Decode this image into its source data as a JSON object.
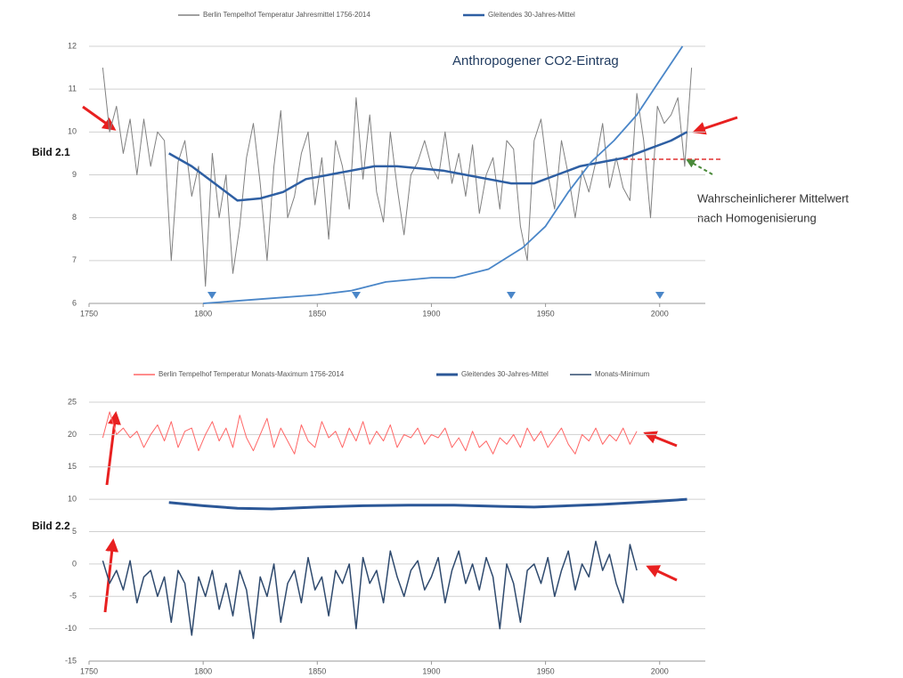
{
  "chart_data": [
    {
      "type": "line",
      "label": "Bild 2.1",
      "annotations": [
        "Anthropogener CO2-Eintrag",
        "Wahrscheinlicherer Mittelwert",
        "nach Homogenisierung"
      ],
      "xlim": [
        1750,
        2020
      ],
      "xticks": [
        1750,
        1800,
        1850,
        1900,
        1950,
        2000
      ],
      "ylim": [
        6,
        12
      ],
      "yticks": [
        6,
        7,
        8,
        9,
        10,
        11,
        12
      ],
      "grid": true,
      "series": [
        {
          "name": "Berlin Tempelhof Temperatur  Jahresmittel 1756-2014",
          "color": "#808080",
          "x": [
            1756,
            1759,
            1762,
            1765,
            1768,
            1771,
            1774,
            1777,
            1780,
            1783,
            1786,
            1789,
            1792,
            1795,
            1798,
            1801,
            1804,
            1807,
            1810,
            1813,
            1816,
            1819,
            1822,
            1825,
            1828,
            1831,
            1834,
            1837,
            1840,
            1843,
            1846,
            1849,
            1852,
            1855,
            1858,
            1861,
            1864,
            1867,
            1870,
            1873,
            1876,
            1879,
            1882,
            1885,
            1888,
            1891,
            1894,
            1897,
            1900,
            1903,
            1906,
            1909,
            1912,
            1915,
            1918,
            1921,
            1924,
            1927,
            1930,
            1933,
            1936,
            1939,
            1942,
            1945,
            1948,
            1951,
            1954,
            1957,
            1960,
            1963,
            1966,
            1969,
            1972,
            1975,
            1978,
            1981,
            1984,
            1987,
            1990,
            1993,
            1996,
            1999,
            2002,
            2005,
            2008,
            2011,
            2014
          ],
          "values": [
            11.5,
            10.0,
            10.6,
            9.5,
            10.3,
            9.0,
            10.3,
            9.2,
            10.0,
            9.8,
            7.0,
            9.3,
            9.8,
            8.5,
            9.2,
            6.4,
            9.5,
            8.0,
            9.0,
            6.7,
            7.8,
            9.4,
            10.2,
            8.8,
            7.0,
            9.2,
            10.5,
            8.0,
            8.5,
            9.5,
            10.0,
            8.3,
            9.4,
            7.5,
            9.8,
            9.2,
            8.2,
            10.8,
            8.9,
            10.4,
            8.6,
            7.9,
            10.0,
            8.7,
            7.6,
            9.0,
            9.3,
            9.8,
            9.2,
            8.9,
            10.0,
            8.8,
            9.5,
            8.5,
            9.7,
            8.1,
            9.0,
            9.4,
            8.2,
            9.8,
            9.6,
            7.8,
            7.0,
            9.8,
            10.3,
            9.0,
            8.2,
            9.8,
            9.0,
            8.0,
            9.1,
            8.6,
            9.3,
            10.2,
            8.7,
            9.4,
            8.7,
            8.4,
            10.9,
            9.8,
            8.0,
            10.6,
            10.2,
            10.4,
            10.8,
            9.2,
            11.5
          ]
        },
        {
          "name": "Gleitendes 30-Jahres-Mittel",
          "color": "#2e5fa3",
          "x": [
            1785,
            1795,
            1805,
            1815,
            1825,
            1835,
            1845,
            1855,
            1865,
            1875,
            1885,
            1895,
            1905,
            1915,
            1925,
            1935,
            1945,
            1955,
            1965,
            1975,
            1985,
            1995,
            2005,
            2012
          ],
          "values": [
            9.5,
            9.2,
            8.8,
            8.4,
            8.45,
            8.6,
            8.9,
            9.0,
            9.1,
            9.2,
            9.2,
            9.15,
            9.1,
            9.0,
            8.9,
            8.8,
            8.8,
            9.0,
            9.2,
            9.3,
            9.4,
            9.6,
            9.8,
            10.0
          ]
        },
        {
          "color": "#4a86c8",
          "x": [
            1800,
            1825,
            1850,
            1865,
            1880,
            1900,
            1910,
            1925,
            1940,
            1950,
            1960,
            1970,
            1980,
            1990,
            2000,
            2010
          ],
          "values": [
            6.0,
            6.1,
            6.2,
            6.3,
            6.5,
            6.6,
            6.6,
            6.8,
            7.3,
            7.8,
            8.6,
            9.3,
            9.8,
            10.4,
            11.2,
            12.0
          ]
        }
      ]
    },
    {
      "type": "line",
      "label": "Bild 2.2",
      "xlim": [
        1750,
        2020
      ],
      "xticks": [
        1750,
        1800,
        1850,
        1900,
        1950,
        2000
      ],
      "ylim": [
        -15,
        25
      ],
      "yticks": [
        -15,
        -10,
        -5,
        0,
        5,
        10,
        15,
        20,
        25
      ],
      "grid": true,
      "series": [
        {
          "name": "Berlin Tempelhof Temperatur Monats-Maximum 1756-2014",
          "color": "#ff6666",
          "x": [
            1756,
            1759,
            1762,
            1765,
            1768,
            1771,
            1774,
            1777,
            1780,
            1783,
            1786,
            1789,
            1792,
            1795,
            1798,
            1801,
            1804,
            1807,
            1810,
            1813,
            1816,
            1819,
            1822,
            1825,
            1828,
            1831,
            1834,
            1837,
            1840,
            1843,
            1846,
            1849,
            1852,
            1855,
            1858,
            1861,
            1864,
            1867,
            1870,
            1873,
            1876,
            1879,
            1882,
            1885,
            1888,
            1891,
            1894,
            1897,
            1900,
            1903,
            1906,
            1909,
            1912,
            1915,
            1918,
            1921,
            1924,
            1927,
            1930,
            1933,
            1936,
            1939,
            1942,
            1945,
            1948,
            1951,
            1954,
            1957,
            1960,
            1963,
            1966,
            1969,
            1972,
            1975,
            1978,
            1981,
            1984,
            1987,
            1990
          ],
          "values": [
            19.5,
            23.5,
            20,
            21,
            19.5,
            20.5,
            18,
            20,
            21.5,
            19,
            22,
            18,
            20.5,
            21,
            17.5,
            20,
            22,
            19,
            21,
            18,
            23,
            19.5,
            17.5,
            20,
            22.5,
            18,
            21,
            19,
            17,
            21.5,
            19,
            18,
            22,
            19.5,
            20.5,
            18,
            21,
            19,
            22,
            18.5,
            20.5,
            19,
            21.5,
            18,
            20,
            19.5,
            21,
            18.5,
            20,
            19.5,
            21,
            18,
            19.5,
            17.5,
            20.5,
            18,
            19,
            17,
            19.5,
            18.5,
            20,
            18,
            21,
            19,
            20.5,
            18,
            19.5,
            21,
            18.5,
            17,
            20,
            19,
            21,
            18.5,
            20,
            19,
            21,
            18.5,
            20.5
          ]
        },
        {
          "name": "Gleitendes 30-Jahres-Mittel",
          "color": "#2b5797",
          "x": [
            1785,
            1800,
            1815,
            1830,
            1850,
            1870,
            1890,
            1910,
            1930,
            1945,
            1960,
            1975,
            1990,
            2000,
            2012
          ],
          "values": [
            9.5,
            9.0,
            8.6,
            8.5,
            8.8,
            9.0,
            9.1,
            9.1,
            8.9,
            8.8,
            9.0,
            9.2,
            9.5,
            9.7,
            10.0
          ]
        },
        {
          "name": "Monats-Minimum",
          "color": "#2f4a6e",
          "x": [
            1756,
            1759,
            1762,
            1765,
            1768,
            1771,
            1774,
            1777,
            1780,
            1783,
            1786,
            1789,
            1792,
            1795,
            1798,
            1801,
            1804,
            1807,
            1810,
            1813,
            1816,
            1819,
            1822,
            1825,
            1828,
            1831,
            1834,
            1837,
            1840,
            1843,
            1846,
            1849,
            1852,
            1855,
            1858,
            1861,
            1864,
            1867,
            1870,
            1873,
            1876,
            1879,
            1882,
            1885,
            1888,
            1891,
            1894,
            1897,
            1900,
            1903,
            1906,
            1909,
            1912,
            1915,
            1918,
            1921,
            1924,
            1927,
            1930,
            1933,
            1936,
            1939,
            1942,
            1945,
            1948,
            1951,
            1954,
            1957,
            1960,
            1963,
            1966,
            1969,
            1972,
            1975,
            1978,
            1981,
            1984,
            1987,
            1990
          ],
          "values": [
            0.5,
            -3,
            -1,
            -4,
            0.5,
            -6,
            -2,
            -1,
            -5,
            -2,
            -9,
            -1,
            -3,
            -11,
            -2,
            -5,
            -1,
            -7,
            -3,
            -8,
            -1,
            -4,
            -11.5,
            -2,
            -5,
            0,
            -9,
            -3,
            -1,
            -6,
            1,
            -4,
            -2,
            -8,
            -1,
            -3,
            0,
            -10,
            1,
            -3,
            -1,
            -6,
            2,
            -2,
            -5,
            -1,
            0.5,
            -4,
            -2,
            1,
            -6,
            -1,
            2,
            -3,
            0,
            -4,
            1,
            -2,
            -10,
            0,
            -3,
            -9,
            -1,
            0,
            -3,
            1,
            -5,
            -1,
            2,
            -4,
            0,
            -2,
            3.5,
            -1,
            1.5,
            -3,
            -6,
            3,
            -1
          ]
        }
      ]
    }
  ]
}
